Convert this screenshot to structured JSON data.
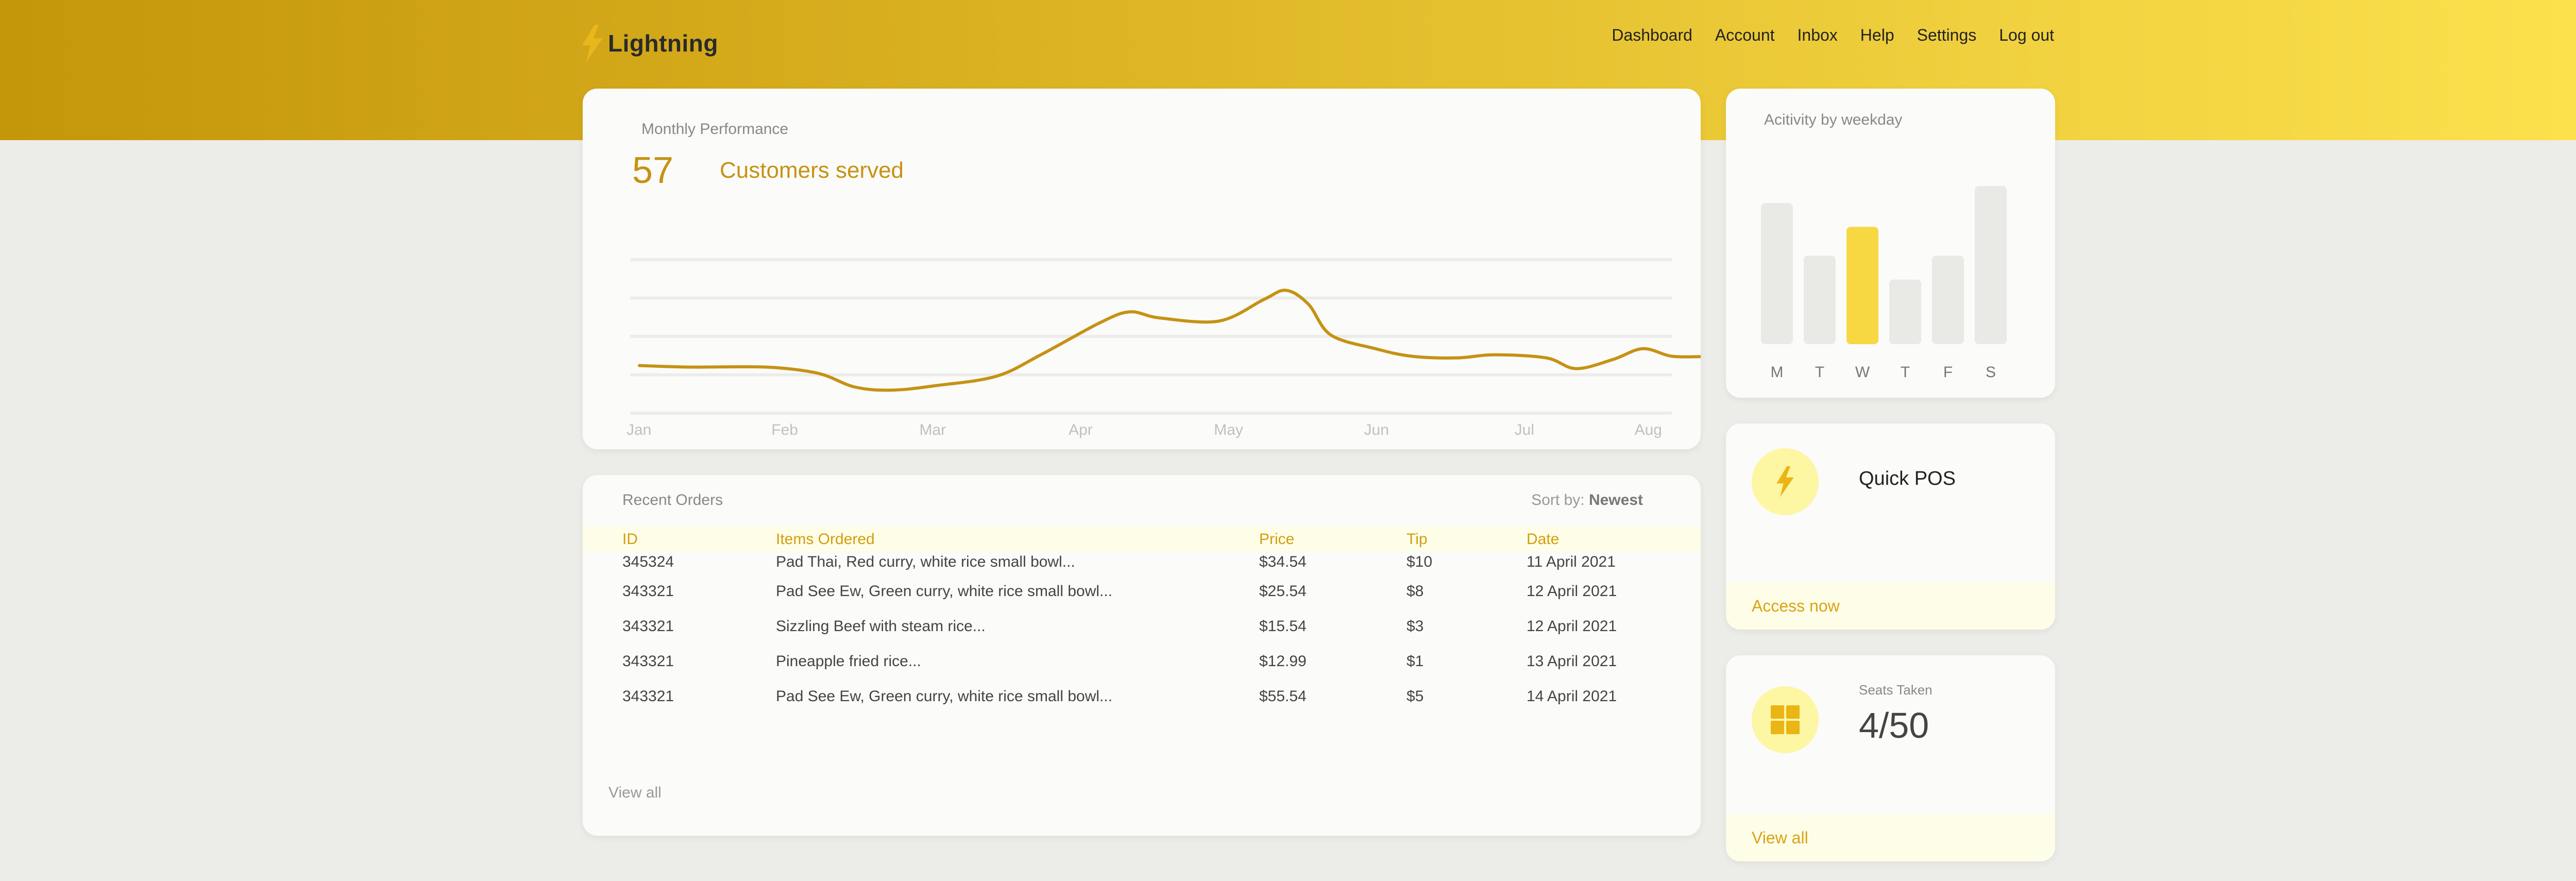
{
  "app": {
    "name": "Lightning",
    "logo_icon": "lightning-bolt-icon",
    "accent": "#c69214",
    "header_gradient": [
      "#c4960a",
      "#fde24e"
    ]
  },
  "nav": {
    "items": [
      {
        "label": "Dashboard"
      },
      {
        "label": "Account"
      },
      {
        "label": "Inbox"
      },
      {
        "label": "Help"
      },
      {
        "label": "Settings"
      },
      {
        "label": "Log out"
      }
    ]
  },
  "performance": {
    "title": "Monthly Performance",
    "metric_value": "57",
    "metric_label": "Customers served"
  },
  "chart_data": [
    {
      "type": "line",
      "x": [
        "Jan",
        "Feb",
        "Mar",
        "Apr",
        "May",
        "Jun",
        "Jul",
        "Aug"
      ],
      "tick_labels": [
        "Jan",
        "Feb",
        "Mar",
        "Apr",
        "May",
        "Jun",
        "Jul",
        "Aug"
      ],
      "series": [
        {
          "color": "#c69214",
          "points": [
            [
              0.0,
              27
            ],
            [
              0.35,
              26
            ],
            [
              0.85,
              26
            ],
            [
              1.2,
              22
            ],
            [
              1.45,
              13
            ],
            [
              1.7,
              11
            ],
            [
              2.0,
              14
            ],
            [
              2.4,
              20
            ],
            [
              2.7,
              34
            ],
            [
              3.1,
              55
            ],
            [
              3.3,
              62
            ],
            [
              3.5,
              58
            ],
            [
              3.9,
              56
            ],
            [
              4.2,
              70
            ],
            [
              4.35,
              76
            ],
            [
              4.5,
              67
            ],
            [
              4.65,
              47
            ],
            [
              4.95,
              38
            ],
            [
              5.2,
              33
            ],
            [
              5.5,
              32
            ],
            [
              5.75,
              34
            ],
            [
              6.1,
              32
            ],
            [
              6.3,
              25
            ],
            [
              6.55,
              31
            ],
            [
              6.75,
              38
            ],
            [
              6.95,
              33
            ],
            [
              7.2,
              33
            ]
          ]
        }
      ],
      "ylim": [
        0,
        100
      ],
      "grid": true,
      "axis_labels_visible": false
    },
    {
      "type": "bar",
      "title": "Acitivity by weekday",
      "categories": [
        "M",
        "T",
        "W",
        "T",
        "F",
        "S"
      ],
      "values": [
        83,
        52,
        69,
        38,
        52,
        93
      ],
      "highlight_index": 2,
      "colors": {
        "default": "#e9e9e6",
        "highlight": "#f7d843"
      },
      "ylim": [
        0,
        100
      ],
      "grid": false
    }
  ],
  "orders": {
    "title": "Recent Orders",
    "sort_prefix": "Sort by: ",
    "sort_value": "Newest",
    "columns": [
      "ID",
      "Items Ordered",
      "Price",
      "Tip",
      "Date"
    ],
    "rows": [
      [
        "345324",
        "Pad Thai, Red curry, white rice small bowl...",
        "$34.54",
        "$10",
        "11 April 2021"
      ],
      [
        "343321",
        "Pad See Ew, Green curry, white rice small bowl...",
        "$25.54",
        "$8",
        "12 April 2021"
      ],
      [
        "343321",
        "Sizzling Beef with steam rice...",
        "$15.54",
        "$3",
        "12 April 2021"
      ],
      [
        "343321",
        "Pineapple fried rice...",
        "$12.99",
        "$1",
        "13 April 2021"
      ],
      [
        "343321",
        "Pad See Ew, Green curry, white rice small bowl...",
        "$55.54",
        "$5",
        "14 April 2021"
      ]
    ],
    "view_all": "View all"
  },
  "quick_pos": {
    "title": "Quick POS",
    "icon": "lightning-bolt-icon",
    "action": "Access now"
  },
  "seats": {
    "label": "Seats Taken",
    "value": "4/50",
    "icon": "grid-icon",
    "action": "View all"
  }
}
